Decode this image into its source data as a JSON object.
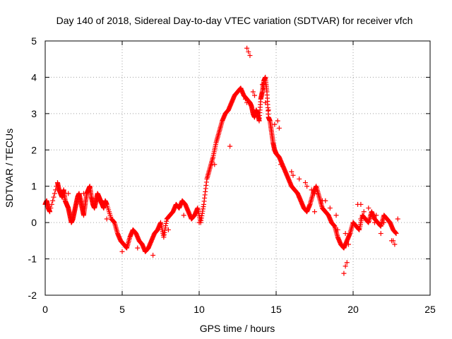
{
  "chart_data": {
    "type": "scatter",
    "title": "Day 140 of 2018, Sidereal Day-to-day VTEC variation (SDTVAR) for receiver vfch",
    "xlabel": "GPS time / hours",
    "ylabel": "SDTVAR / TECUs",
    "xlim": [
      0,
      25
    ],
    "ylim": [
      -2,
      5
    ],
    "xticks": [
      0,
      5,
      10,
      15,
      20,
      25
    ],
    "yticks": [
      -2,
      -1,
      0,
      1,
      2,
      3,
      4,
      5
    ],
    "grid": true,
    "marker": "+",
    "color": "#ff0000",
    "series": [
      {
        "name": "SDTVAR",
        "x": [
          0.0,
          0.1,
          0.2,
          0.3,
          0.8,
          0.9,
          1.0,
          1.1,
          1.2,
          1.3,
          1.4,
          1.5,
          1.6,
          1.7,
          1.8,
          1.9,
          2.0,
          2.1,
          2.2,
          2.3,
          2.4,
          2.5,
          2.6,
          2.7,
          2.8,
          2.9,
          3.0,
          3.1,
          3.2,
          3.3,
          3.4,
          3.5,
          3.6,
          3.7,
          3.8,
          3.9,
          4.0,
          4.3,
          4.5,
          4.7,
          4.9,
          5.1,
          5.3,
          5.5,
          5.7,
          5.9,
          6.1,
          6.3,
          6.5,
          6.7,
          6.9,
          7.1,
          7.3,
          7.5,
          7.7,
          7.9,
          8.1,
          8.3,
          8.5,
          8.7,
          8.9,
          9.1,
          9.3,
          9.5,
          9.7,
          9.9,
          10.1,
          10.3,
          10.5,
          10.7,
          10.9,
          11.1,
          11.3,
          11.5,
          11.7,
          11.9,
          12.1,
          12.3,
          12.5,
          12.7,
          12.9,
          13.1,
          13.3,
          13.4,
          13.5,
          13.6,
          13.7,
          13.8,
          13.9,
          14.0,
          14.1,
          14.2,
          14.3,
          14.4,
          14.5,
          14.6,
          14.7,
          14.8,
          14.9,
          15.0,
          15.2,
          15.4,
          15.6,
          15.8,
          16.0,
          16.2,
          16.4,
          16.6,
          16.8,
          17.0,
          17.2,
          17.4,
          17.6,
          17.8,
          18.0,
          18.2,
          18.4,
          18.6,
          18.8,
          19.0,
          19.2,
          19.4,
          19.6,
          19.8,
          20.0,
          20.2,
          20.4,
          20.6,
          20.8,
          21.0,
          21.2,
          21.4,
          21.6,
          21.8,
          22.0,
          22.2,
          22.4,
          22.6,
          22.8,
          13.0,
          13.1,
          13.5,
          13.6,
          14.3,
          14.5,
          14.9,
          15.3,
          16.5,
          17.0,
          17.5,
          18.0,
          18.5,
          19.0,
          19.5,
          20.0,
          20.5,
          21.0,
          21.5,
          22.0,
          22.5,
          22.9,
          1.5,
          2.5,
          3.5,
          4.0,
          5.0,
          6.0,
          7.0,
          8.0,
          9.0,
          10.0,
          11.0,
          12.0,
          16.0,
          16.5,
          17.5,
          18.2,
          19.7,
          20.3,
          21.8
        ],
        "y": [
          0.5,
          0.6,
          0.4,
          0.3,
          1.1,
          0.9,
          0.8,
          0.7,
          0.9,
          0.6,
          0.5,
          0.4,
          0.2,
          0.0,
          0.1,
          0.3,
          0.5,
          0.7,
          0.8,
          0.6,
          0.4,
          0.2,
          0.5,
          0.8,
          0.9,
          1.0,
          0.7,
          0.5,
          0.4,
          0.6,
          0.8,
          0.7,
          0.6,
          0.5,
          0.4,
          0.6,
          0.5,
          0.1,
          0.0,
          -0.3,
          -0.5,
          -0.6,
          -0.7,
          -0.4,
          -0.2,
          -0.3,
          -0.5,
          -0.6,
          -0.8,
          -0.7,
          -0.5,
          -0.3,
          -0.2,
          0.0,
          -0.4,
          0.1,
          0.2,
          0.3,
          0.5,
          0.4,
          0.6,
          0.5,
          0.3,
          0.1,
          0.2,
          0.4,
          0.0,
          0.5,
          1.2,
          1.5,
          1.8,
          2.2,
          2.5,
          2.8,
          3.0,
          3.1,
          3.3,
          3.5,
          3.6,
          3.7,
          3.5,
          3.4,
          3.3,
          3.2,
          3.0,
          2.9,
          3.1,
          3.0,
          2.8,
          3.4,
          3.6,
          3.9,
          4.0,
          3.6,
          2.9,
          2.8,
          2.5,
          2.2,
          2.0,
          1.9,
          1.8,
          1.6,
          1.4,
          1.2,
          1.0,
          0.9,
          0.8,
          0.6,
          0.4,
          0.3,
          0.5,
          0.8,
          1.0,
          0.7,
          0.4,
          0.3,
          0.2,
          0.0,
          -0.1,
          -0.4,
          -0.6,
          -0.7,
          -0.5,
          -0.3,
          0.0,
          -0.1,
          -0.2,
          0.2,
          0.1,
          0.0,
          0.3,
          0.1,
          0.0,
          -0.1,
          0.2,
          0.1,
          0.0,
          -0.2,
          -0.3,
          3.4,
          3.3,
          3.6,
          3.5,
          3.3,
          3.1,
          2.7,
          1.6,
          1.2,
          1.0,
          0.8,
          0.6,
          0.4,
          -0.2,
          -0.3,
          0.0,
          0.1,
          0.4,
          0.2,
          0.0,
          -0.5,
          0.1,
          0.8,
          0.8,
          0.6,
          0.1,
          -0.8,
          -0.7,
          -0.9,
          -0.2,
          0.2,
          0.0,
          1.6,
          2.1,
          1.4,
          0.7,
          0.3,
          0.6,
          -0.6,
          0.5,
          -0.3
        ],
        "extra_x": [
          13.1,
          13.2,
          13.3,
          14.1,
          14.2,
          19.4,
          19.5,
          19.6,
          22.6,
          22.7,
          15.1,
          15.2,
          16.1,
          16.9,
          17.3,
          18.9,
          20.5,
          20.7,
          21.2,
          21.4
        ],
        "extra_y": [
          4.8,
          4.7,
          4.6,
          3.8,
          3.7,
          -1.4,
          -1.2,
          -1.1,
          -0.5,
          -0.6,
          2.8,
          2.6,
          1.3,
          1.1,
          0.9,
          0.2,
          0.5,
          0.3,
          0.2,
          0.0
        ]
      }
    ]
  }
}
